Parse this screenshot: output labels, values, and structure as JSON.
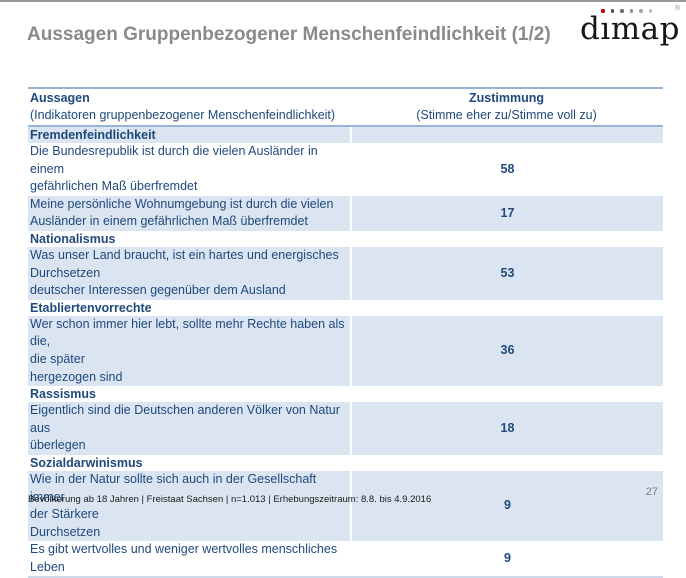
{
  "slide": {
    "title": "Aussagen Gruppenbezogener Menschenfeindlichkeit (1/2)",
    "footer": "Bevölkerung ab 18 Jahren | Freistaat Sachsen | n=1.013 | Erhebungszeitraum: 8.8. bis 4.9.2016",
    "page_number": "27"
  },
  "logo": {
    "word": "dımap",
    "registered": "®",
    "dot_colors": [
      "#c00000",
      "#4d4d4d",
      "#6e6e6e",
      "#8c8c8c",
      "#a6a6a6",
      "#c2c2c2"
    ]
  },
  "colors": {
    "title_gray": "#8a8a8a",
    "table_text_blue": "#1f497d",
    "row_shade_blue": "#dbe5f1",
    "header_border_blue": "#95b3d7",
    "bottom_border_blue": "#ccdaeb"
  },
  "table": {
    "header": {
      "statements_title": "Aussagen",
      "statements_subtitle": "(Indikatoren gruppenbezogener Menschenfeindlichkeit)",
      "agreement_title": "Zustimmung",
      "agreement_subtitle": "(Stimme eher zu/Stimme voll zu)"
    },
    "rows": [
      {
        "type": "section",
        "lines": [
          "Fremdenfeindlichkeit"
        ],
        "value": "",
        "shaded": true
      },
      {
        "type": "statement",
        "lines": [
          "Die Bundesrepublik ist durch die vielen Ausländer in einem",
          "gefährlichen Maß überfremdet"
        ],
        "value": "58",
        "shaded": false
      },
      {
        "type": "statement",
        "lines": [
          "Meine persönliche Wohnumgebung ist durch die vielen",
          "Ausländer in einem gefährlichen Maß überfremdet"
        ],
        "value": "17",
        "shaded": true
      },
      {
        "type": "section",
        "lines": [
          "Nationalismus"
        ],
        "value": "",
        "shaded": false
      },
      {
        "type": "statement",
        "lines": [
          "Was unser Land braucht, ist ein hartes und energisches",
          "Durchsetzen",
          "deutscher Interessen gegenüber dem Ausland"
        ],
        "value": "53",
        "shaded": true
      },
      {
        "type": "section",
        "lines": [
          "Etabliertenvorrechte"
        ],
        "value": "",
        "shaded": false
      },
      {
        "type": "statement",
        "lines": [
          "Wer schon immer hier lebt, sollte mehr Rechte haben als die,",
          "die später",
          "hergezogen sind"
        ],
        "value": "36",
        "shaded": true
      },
      {
        "type": "section",
        "lines": [
          "Rassismus"
        ],
        "value": "",
        "shaded": false
      },
      {
        "type": "statement",
        "lines": [
          "Eigentlich sind die Deutschen anderen Völker von Natur aus",
          "überlegen"
        ],
        "value": "18",
        "shaded": true
      },
      {
        "type": "section",
        "lines": [
          "Sozialdarwinismus"
        ],
        "value": "",
        "shaded": false
      },
      {
        "type": "statement",
        "lines": [
          "Wie in der Natur sollte sich auch in der Gesellschaft immer",
          "der Stärkere",
          "Durchsetzen"
        ],
        "value": "9",
        "shaded": true
      },
      {
        "type": "statement",
        "lines": [
          "Es gibt wertvolles und weniger wertvolles menschliches Leben"
        ],
        "value": "9",
        "shaded": false
      }
    ]
  }
}
